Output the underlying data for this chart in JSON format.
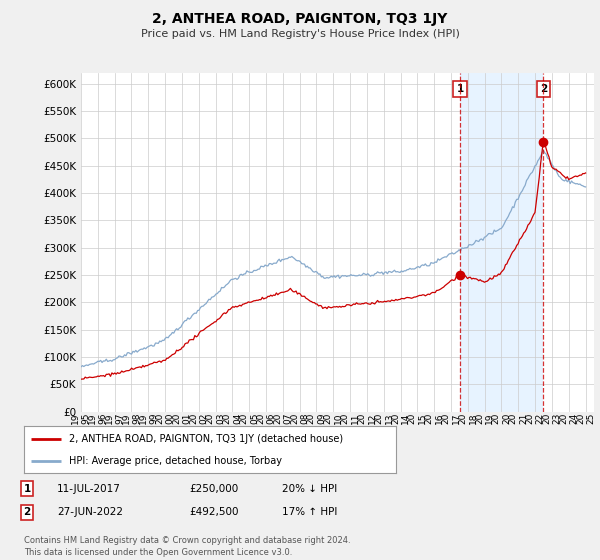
{
  "title": "2, ANTHEA ROAD, PAIGNTON, TQ3 1JY",
  "subtitle": "Price paid vs. HM Land Registry's House Price Index (HPI)",
  "legend_line1": "2, ANTHEA ROAD, PAIGNTON, TQ3 1JY (detached house)",
  "legend_line2": "HPI: Average price, detached house, Torbay",
  "sale1_date": "11-JUL-2017",
  "sale1_price": "£250,000",
  "sale1_hpi": "20% ↓ HPI",
  "sale1_year": 2017.53,
  "sale1_value": 250000,
  "sale2_date": "27-JUN-2022",
  "sale2_price": "£492,500",
  "sale2_hpi": "17% ↑ HPI",
  "sale2_year": 2022.49,
  "sale2_value": 492500,
  "ylim": [
    0,
    620000
  ],
  "yticks": [
    0,
    50000,
    100000,
    150000,
    200000,
    250000,
    300000,
    350000,
    400000,
    450000,
    500000,
    550000,
    600000
  ],
  "line_color_red": "#cc0000",
  "line_color_blue": "#88aacc",
  "shade_color": "#ddeeff",
  "background_color": "#f0f0f0",
  "plot_bg_color": "#ffffff",
  "grid_color": "#cccccc",
  "footer": "Contains HM Land Registry data © Crown copyright and database right 2024.\nThis data is licensed under the Open Government Licence v3.0."
}
